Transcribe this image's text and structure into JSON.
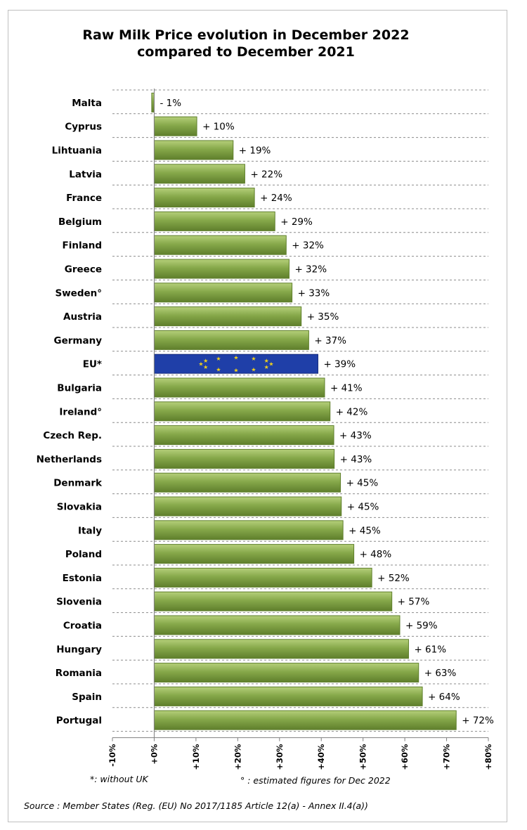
{
  "chart_data": {
    "type": "bar",
    "orientation": "horizontal",
    "title": [
      "Raw Milk Price evolution in December 2022",
      "compared to December 2021"
    ],
    "categories": [
      "Malta",
      "Cyprus",
      "Lihtuania",
      "Latvia",
      "France",
      "Belgium",
      "Finland",
      "Greece",
      "Sweden°",
      "Austria",
      "Germany",
      "EU*",
      "Bulgaria",
      "Ireland°",
      "Czech Rep.",
      "Netherlands",
      "Denmark",
      "Slovakia",
      "Italy",
      "Poland",
      "Estonia",
      "Slovenia",
      "Croatia",
      "Hungary",
      "Romania",
      "Spain",
      "Portugal"
    ],
    "values": [
      -0.6,
      10.2,
      18.9,
      21.7,
      24.0,
      28.9,
      31.6,
      32.3,
      33.0,
      35.2,
      37.0,
      39.2,
      40.8,
      42.1,
      43.0,
      43.1,
      44.6,
      44.8,
      45.2,
      47.8,
      52.1,
      56.9,
      58.8,
      60.9,
      63.3,
      64.2,
      72.3
    ],
    "data_labels": [
      "- 1%",
      "+ 10%",
      "+ 19%",
      "+ 22%",
      "+ 24%",
      "+ 29%",
      "+ 32%",
      "+ 32%",
      "+ 33%",
      "+ 35%",
      "+ 37%",
      "+ 39%",
      "+ 41%",
      "+ 42%",
      "+ 43%",
      "+ 43%",
      "+ 45%",
      "+ 45%",
      "+ 45%",
      "+ 48%",
      "+ 52%",
      "+ 57%",
      "+ 59%",
      "+ 61%",
      "+ 63%",
      "+ 64%",
      "+ 72%"
    ],
    "highlight": "EU*",
    "xlim": [
      -10,
      80
    ],
    "x_ticks": [
      -10,
      0,
      10,
      20,
      30,
      40,
      50,
      60,
      70,
      80
    ],
    "x_tick_labels": [
      "-10%",
      "+0%",
      "+10%",
      "+20%",
      "+30%",
      "+40%",
      "+50%",
      "+60%",
      "+70%",
      "+80%"
    ],
    "grid": "dashed horizontal separators between categories",
    "colors": {
      "bar": "#7fa043",
      "bar_light": "#a8c56c",
      "bar_dark": "#5f7f2c",
      "eu_bar": "#1f3fa8",
      "eu_star": "#f2d21a"
    }
  },
  "notes": {
    "uk": "*: without UK",
    "estimated": "° : estimated figures for Dec 2022"
  },
  "source": "Source : Member States (Reg. (EU) No 2017/1185 Article 12(a) - Annex II.4(a))"
}
